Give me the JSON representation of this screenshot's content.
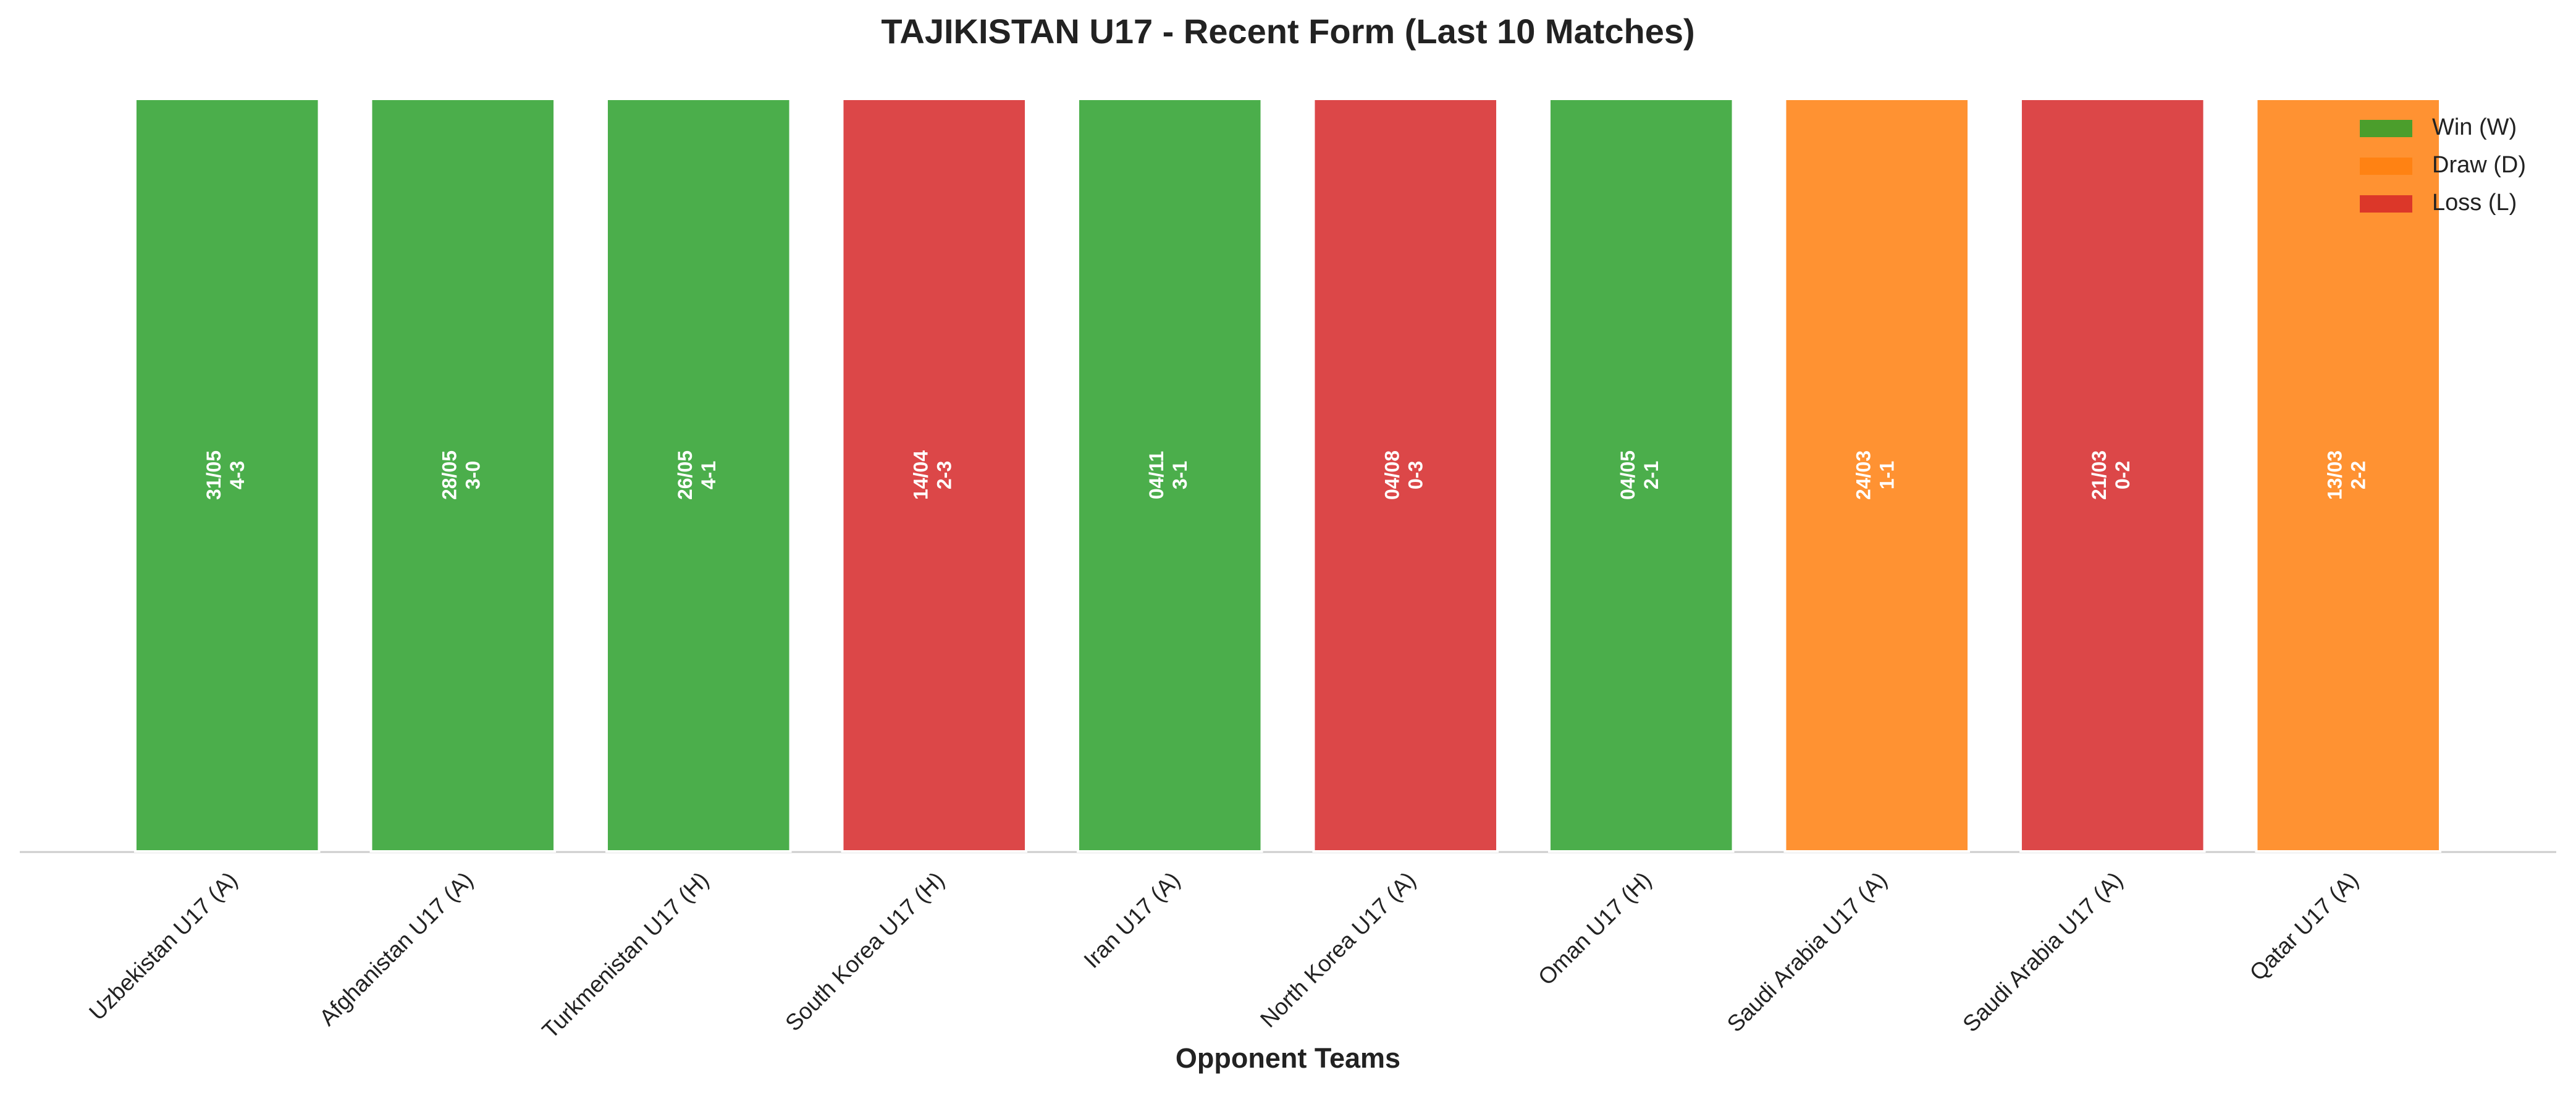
{
  "chart_data": {
    "type": "bar",
    "title": "TAJIKISTAN U17 - Recent Form (Last 10 Matches)",
    "x_label": "Opponent Teams",
    "categories": [
      "Uzbekistan U17 (A)",
      "Afghanistan U17 (A)",
      "Turkmenistan U17 (H)",
      "South Korea U17 (H)",
      "Iran U17 (A)",
      "North Korea U17 (A)",
      "Oman U17 (H)",
      "Saudi Arabia U17 (A)",
      "Saudi Arabia U17 (A)",
      "Qatar U17 (A)"
    ],
    "values": [
      1,
      1,
      1,
      1,
      1,
      1,
      1,
      1,
      1,
      1
    ],
    "dates": [
      "31/05",
      "28/05",
      "26/05",
      "14/04",
      "04/11",
      "04/08",
      "04/05",
      "24/03",
      "21/03",
      "13/03"
    ],
    "scores": [
      "4-3",
      "3-0",
      "4-1",
      "2-3",
      "3-1",
      "0-3",
      "2-1",
      "1-1",
      "0-2",
      "2-2"
    ],
    "colors": [
      "#2ca02c",
      "#2ca02c",
      "#2ca02c",
      "#d62728",
      "#2ca02c",
      "#d62728",
      "#2ca02c",
      "#ff7f0e",
      "#d62728",
      "#ff7f0e"
    ],
    "ylim": [
      0,
      1
    ],
    "legend": [
      {
        "name": "Win (W)",
        "color": "#2ca02c"
      },
      {
        "name": "Draw (D)",
        "color": "#ff7f0e"
      },
      {
        "name": "Loss (L)",
        "color": "#d62728"
      }
    ],
    "legend_position": "upper right"
  }
}
